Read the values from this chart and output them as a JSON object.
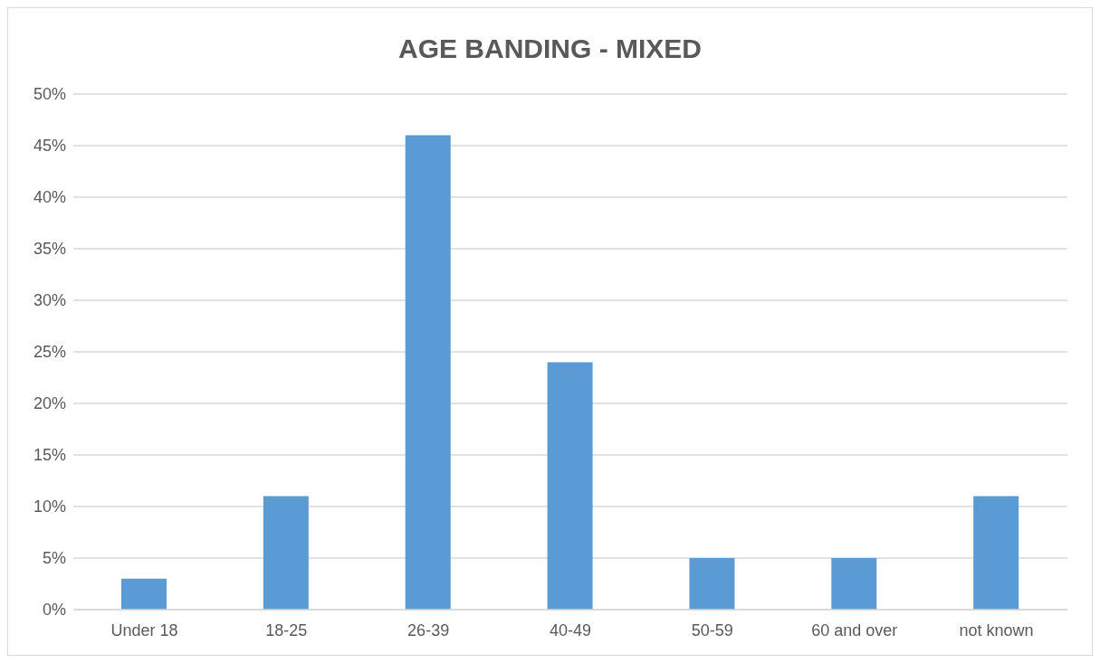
{
  "chart_data": {
    "type": "bar",
    "title": "AGE BANDING - MIXED",
    "categories": [
      "Under 18",
      "18-25",
      "26-39",
      "40-49",
      "50-59",
      "60 and over",
      "not known"
    ],
    "values": [
      3,
      11,
      46,
      24,
      5,
      5,
      11
    ],
    "color": "#5b9bd5",
    "ylim": [
      0,
      50
    ],
    "yticks": [
      {
        "value": 0,
        "label": "0%"
      },
      {
        "value": 5,
        "label": "5%"
      },
      {
        "value": 10,
        "label": "10%"
      },
      {
        "value": 15,
        "label": "15%"
      },
      {
        "value": 20,
        "label": "20%"
      },
      {
        "value": 25,
        "label": "25%"
      },
      {
        "value": 30,
        "label": "30%"
      },
      {
        "value": 35,
        "label": "35%"
      },
      {
        "value": 40,
        "label": "40%"
      },
      {
        "value": 45,
        "label": "45%"
      },
      {
        "value": 50,
        "label": "50%"
      }
    ],
    "grid": "y"
  }
}
